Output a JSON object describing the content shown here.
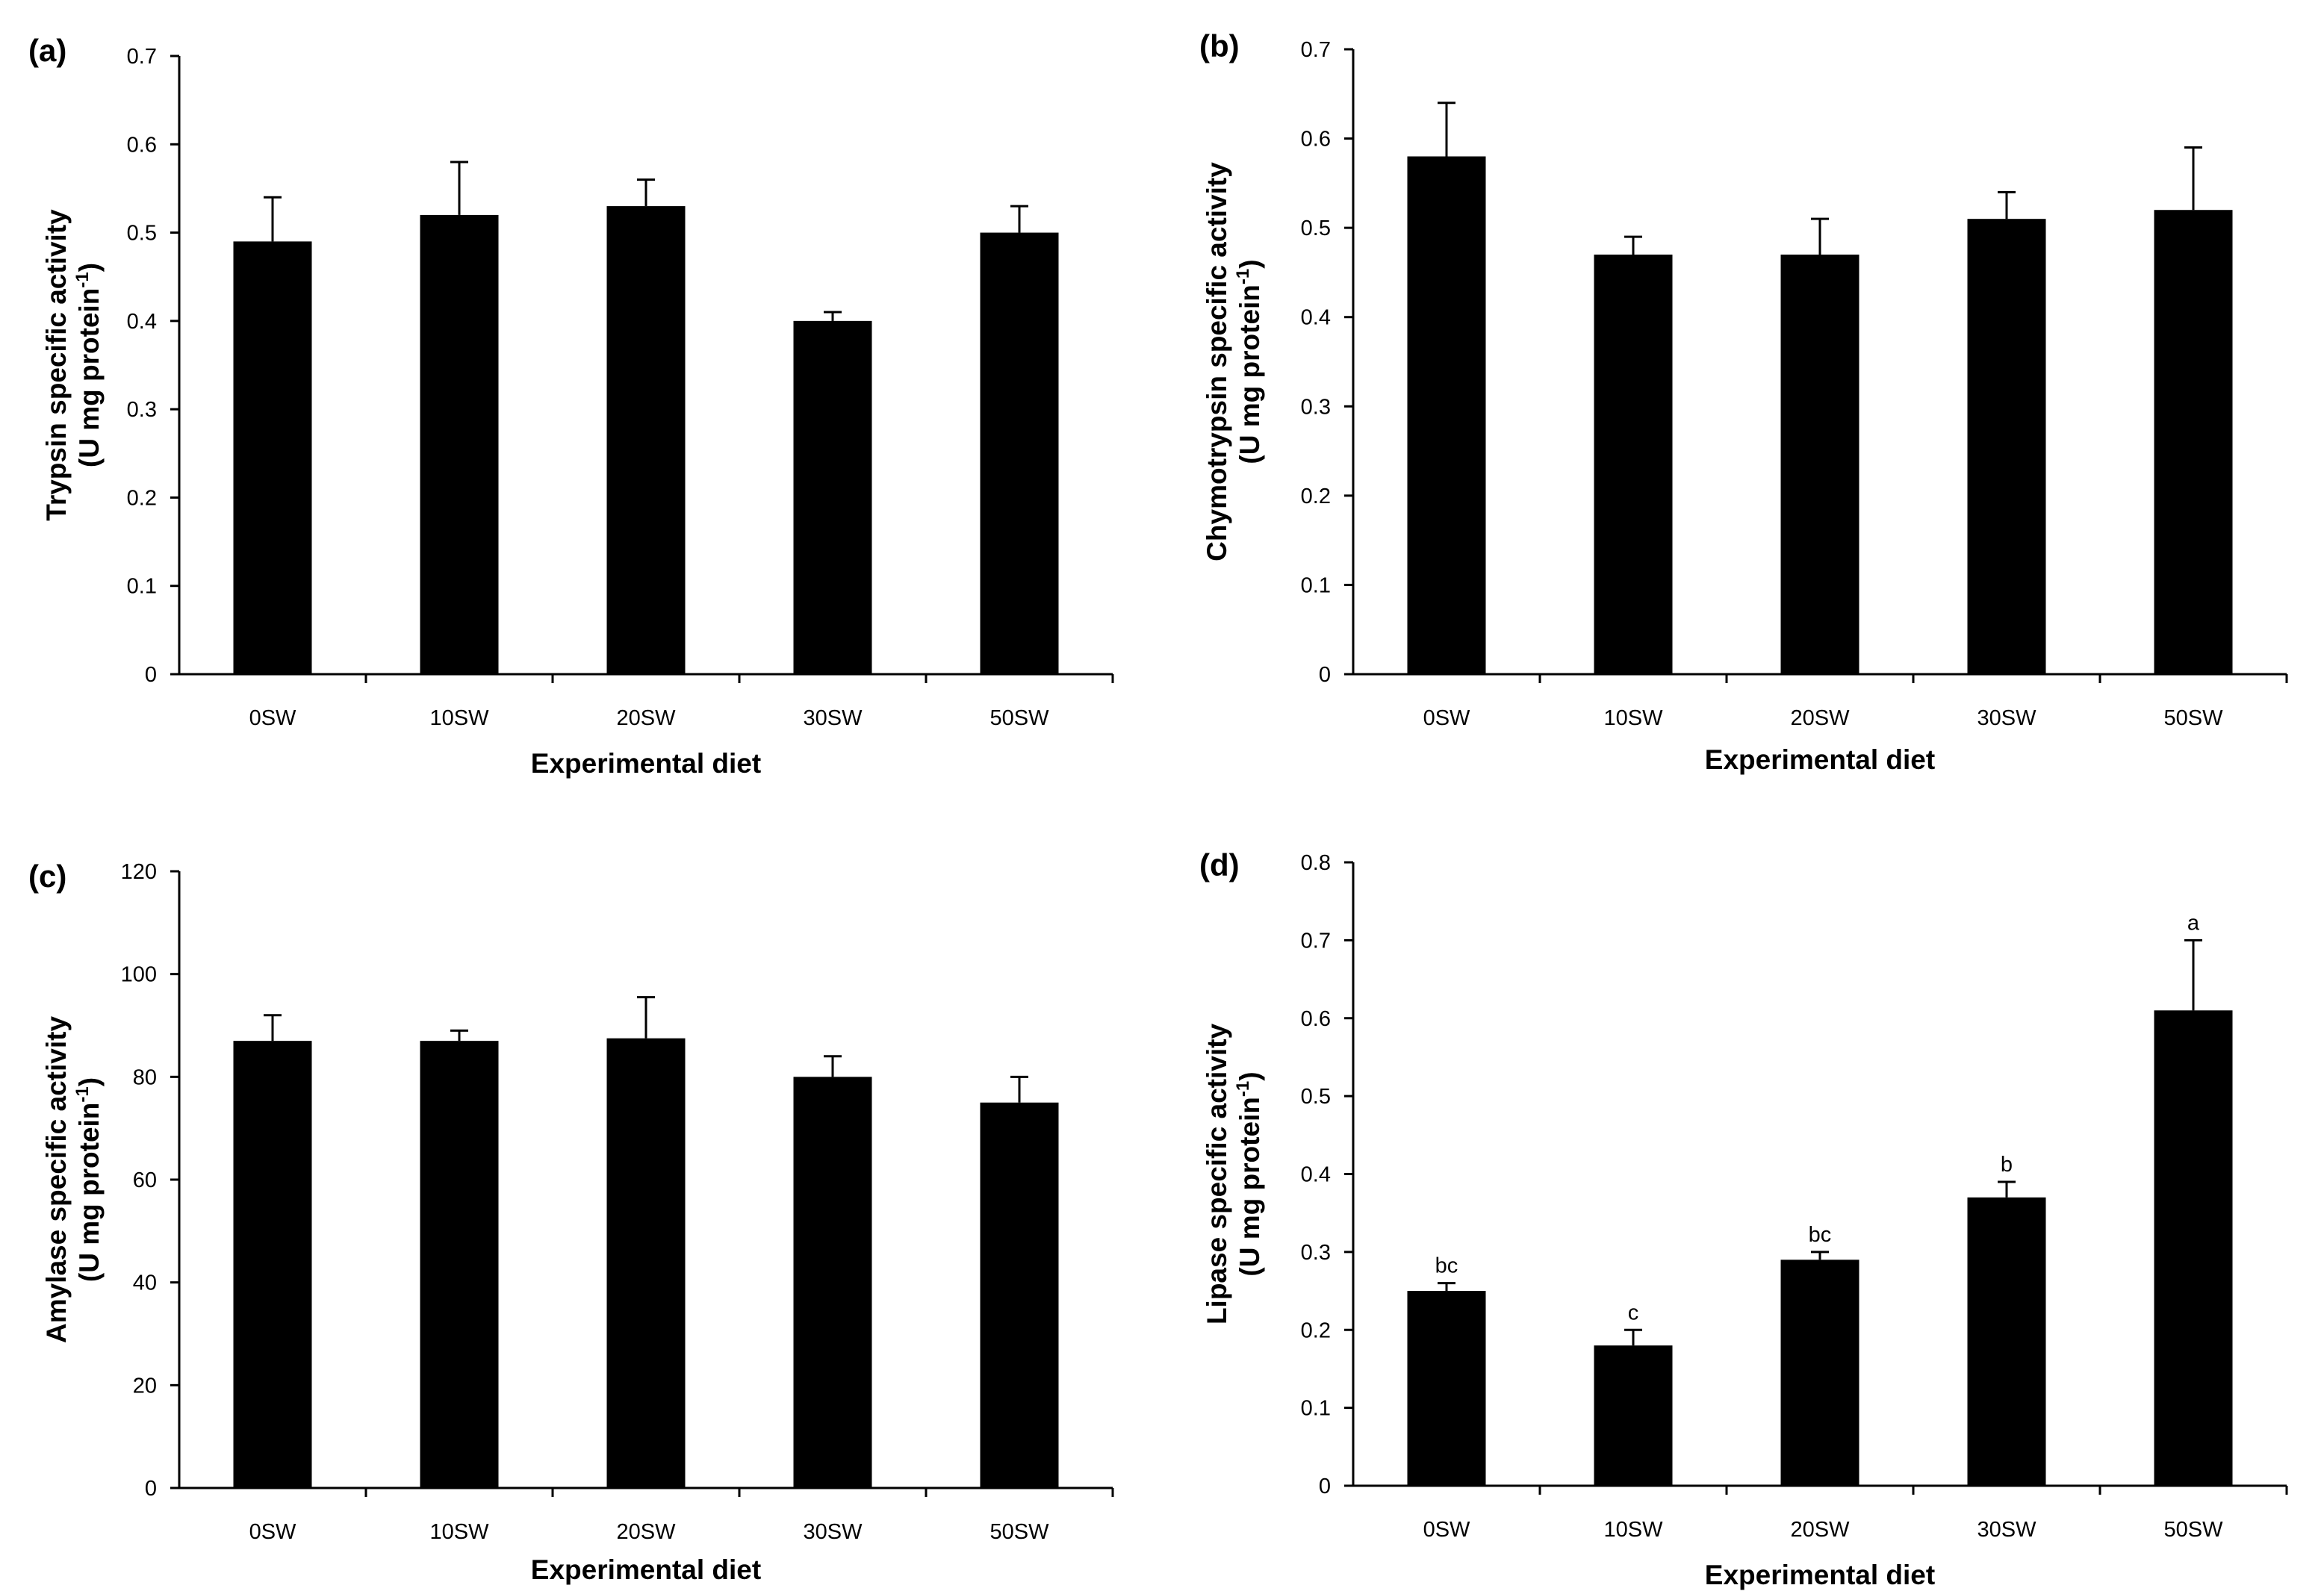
{
  "chart_data": [
    {
      "type": "bar",
      "panel": "(a)",
      "categories": [
        "0SW",
        "10SW",
        "20SW",
        "30SW",
        "50SW"
      ],
      "values": [
        0.49,
        0.52,
        0.53,
        0.4,
        0.5
      ],
      "errors": [
        0.05,
        0.06,
        0.03,
        0.01,
        0.03
      ],
      "letters": [],
      "ylim": [
        0,
        0.7
      ],
      "yticks": [
        "0",
        "0.1",
        "0.2",
        "0.3",
        "0.4",
        "0.5",
        "0.6",
        "0.7"
      ],
      "ylabel_line1": "Trypsin specific activity",
      "ylabel_line2_prefix": "(U mg protein",
      "ylabel_line2_sup": "-1",
      "ylabel_line2_suffix": ")",
      "xlabel": "Experimental diet",
      "color": "#000000"
    },
    {
      "type": "bar",
      "panel": "(b)",
      "categories": [
        "0SW",
        "10SW",
        "20SW",
        "30SW",
        "50SW"
      ],
      "values": [
        0.58,
        0.47,
        0.47,
        0.51,
        0.52
      ],
      "errors": [
        0.06,
        0.02,
        0.04,
        0.03,
        0.07
      ],
      "letters": [],
      "ylim": [
        0,
        0.7
      ],
      "yticks": [
        "0",
        "0.1",
        "0.2",
        "0.3",
        "0.4",
        "0.5",
        "0.6",
        "0.7"
      ],
      "ylabel_line1": "Chymotrypsin specific activity",
      "ylabel_line2_prefix": "(U mg protein",
      "ylabel_line2_sup": "-1",
      "ylabel_line2_suffix": ")",
      "xlabel": "Experimental diet",
      "color": "#000000"
    },
    {
      "type": "bar",
      "panel": "(c)",
      "categories": [
        "0SW",
        "10SW",
        "20SW",
        "30SW",
        "50SW"
      ],
      "values": [
        87,
        87,
        87.5,
        80,
        75
      ],
      "errors": [
        5,
        2,
        8,
        4,
        5
      ],
      "letters": [],
      "ylim": [
        0,
        120
      ],
      "yticks": [
        "0",
        "20",
        "40",
        "60",
        "80",
        "100",
        "120"
      ],
      "ylabel_line1": "Amylase specific activity",
      "ylabel_line2_prefix": "(U mg protein",
      "ylabel_line2_sup": "-1",
      "ylabel_line2_suffix": ")",
      "xlabel": "Experimental diet",
      "color": "#000000"
    },
    {
      "type": "bar",
      "panel": "(d)",
      "categories": [
        "0SW",
        "10SW",
        "20SW",
        "30SW",
        "50SW"
      ],
      "values": [
        0.25,
        0.18,
        0.29,
        0.37,
        0.61
      ],
      "errors": [
        0.01,
        0.02,
        0.01,
        0.02,
        0.09
      ],
      "letters": [
        "bc",
        "c",
        "bc",
        "b",
        "a"
      ],
      "ylim": [
        0,
        0.8
      ],
      "yticks": [
        "0",
        "0.1",
        "0.2",
        "0.3",
        "0.4",
        "0.5",
        "0.6",
        "0.7",
        "0.8"
      ],
      "ylabel_line1": "Lipase specific activity",
      "ylabel_line2_prefix": "(U mg protein",
      "ylabel_line2_sup": "-1",
      "ylabel_line2_suffix": ")",
      "xlabel": "Experimental diet",
      "color": "#000000"
    }
  ]
}
